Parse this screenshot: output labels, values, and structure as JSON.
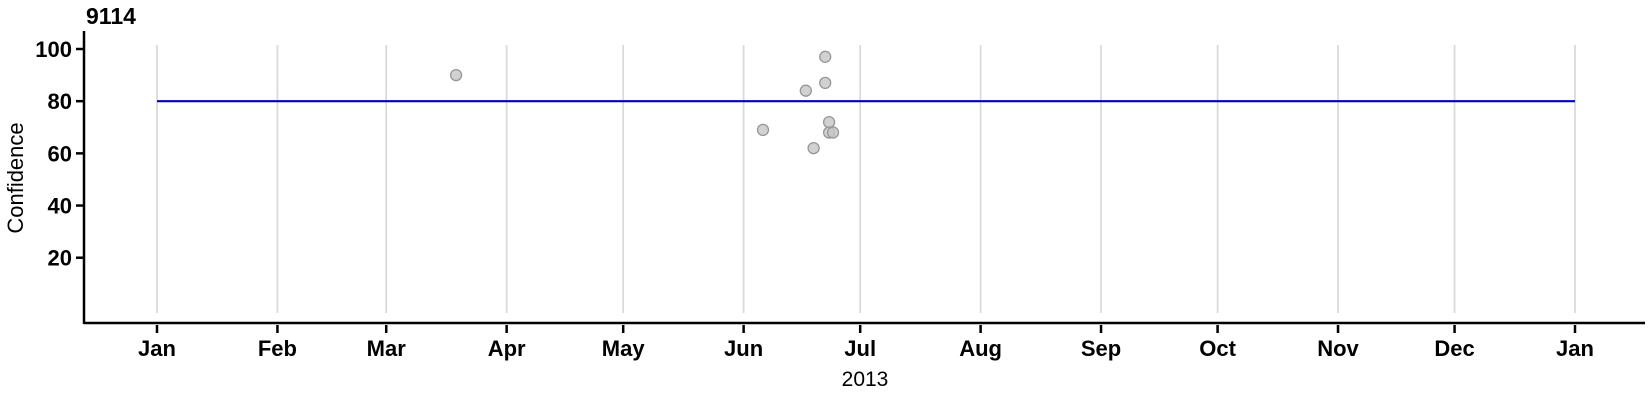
{
  "chart_data": {
    "type": "scatter",
    "title": "9114",
    "ylabel": "Confidence",
    "xlabel": "2013",
    "x_tick_labels": [
      "Jan",
      "Feb",
      "Mar",
      "Apr",
      "May",
      "Jun",
      "Jul",
      "Aug",
      "Sep",
      "Oct",
      "Nov",
      "Dec",
      "Jan"
    ],
    "y_ticks": [
      20,
      40,
      60,
      80,
      100
    ],
    "ylim": [
      0,
      102
    ],
    "x_range": [
      "2013-01-01",
      "2014-01-01"
    ],
    "grid": "vertical month gridlines only",
    "legend": "none",
    "points": [
      {
        "date": "2013-03-19",
        "confidence": 90
      },
      {
        "date": "2013-06-06",
        "confidence": 69
      },
      {
        "date": "2013-06-17",
        "confidence": 84
      },
      {
        "date": "2013-06-19",
        "confidence": 62
      },
      {
        "date": "2013-06-22",
        "confidence": 97
      },
      {
        "date": "2013-06-22",
        "confidence": 87
      },
      {
        "date": "2013-06-23",
        "confidence": 72
      },
      {
        "date": "2013-06-23",
        "confidence": 68
      },
      {
        "date": "2013-06-24",
        "confidence": 68
      }
    ],
    "reference_line": {
      "value": 80
    },
    "colors": {
      "point_fill": "#C6C6C6",
      "point_stroke": "#979797",
      "grid": "#D9D9D9",
      "axis": "#000000",
      "reference": "#0000CD"
    }
  }
}
